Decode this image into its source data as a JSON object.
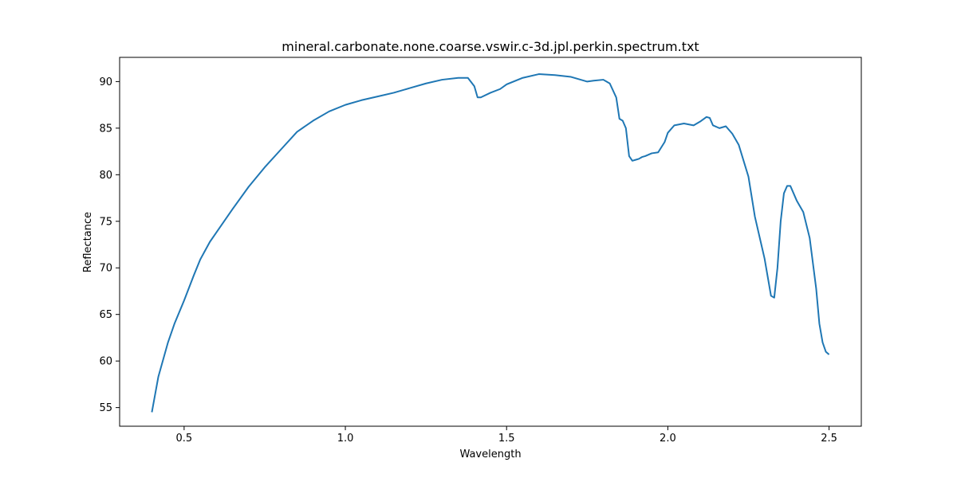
{
  "chart_data": {
    "type": "line",
    "title": "mineral.carbonate.none.coarse.vswir.c-3d.jpl.perkin.spectrum.txt",
    "xlabel": "Wavelength",
    "ylabel": "Reflectance",
    "xlim": [
      0.3,
      2.6
    ],
    "ylim": [
      53,
      92.6
    ],
    "grid": false,
    "x_ticks": [
      0.5,
      1.0,
      1.5,
      2.0,
      2.5
    ],
    "x_tick_labels": [
      "0.5",
      "1.0",
      "1.5",
      "2.0",
      "2.5"
    ],
    "y_ticks": [
      55,
      60,
      65,
      70,
      75,
      80,
      85,
      90
    ],
    "y_tick_labels": [
      "55",
      "60",
      "65",
      "70",
      "75",
      "80",
      "85",
      "90"
    ],
    "series": [
      {
        "color": "#1f77b4",
        "x": [
          0.4,
          0.42,
          0.45,
          0.47,
          0.5,
          0.53,
          0.55,
          0.58,
          0.6,
          0.65,
          0.7,
          0.75,
          0.8,
          0.85,
          0.9,
          0.95,
          1.0,
          1.05,
          1.1,
          1.15,
          1.2,
          1.25,
          1.3,
          1.35,
          1.38,
          1.4,
          1.41,
          1.42,
          1.45,
          1.48,
          1.5,
          1.55,
          1.6,
          1.65,
          1.7,
          1.75,
          1.77,
          1.8,
          1.82,
          1.84,
          1.85,
          1.86,
          1.87,
          1.88,
          1.89,
          1.9,
          1.91,
          1.92,
          1.93,
          1.95,
          1.97,
          1.99,
          2.0,
          2.02,
          2.05,
          2.08,
          2.1,
          2.12,
          2.13,
          2.14,
          2.16,
          2.18,
          2.2,
          2.22,
          2.25,
          2.27,
          2.29,
          2.3,
          2.31,
          2.32,
          2.33,
          2.34,
          2.35,
          2.36,
          2.37,
          2.38,
          2.39,
          2.4,
          2.42,
          2.44,
          2.46,
          2.47,
          2.48,
          2.49,
          2.5
        ],
        "y": [
          54.5,
          58.3,
          62.0,
          64.0,
          66.5,
          69.2,
          70.9,
          72.8,
          73.8,
          76.3,
          78.7,
          80.8,
          82.7,
          84.6,
          85.8,
          86.8,
          87.5,
          88.0,
          88.4,
          88.8,
          89.3,
          89.8,
          90.2,
          90.4,
          90.4,
          89.5,
          88.3,
          88.3,
          88.8,
          89.2,
          89.7,
          90.4,
          90.8,
          90.7,
          90.5,
          90.0,
          90.1,
          90.2,
          89.8,
          88.3,
          86.0,
          85.8,
          85.0,
          82.0,
          81.5,
          81.6,
          81.7,
          81.9,
          82.0,
          82.3,
          82.4,
          83.5,
          84.5,
          85.3,
          85.5,
          85.3,
          85.7,
          86.2,
          86.1,
          85.3,
          85.0,
          85.2,
          84.4,
          83.2,
          79.8,
          75.5,
          72.5,
          71.0,
          69.0,
          67.0,
          66.8,
          70.0,
          75.0,
          78.0,
          78.8,
          78.8,
          78.0,
          77.2,
          76.0,
          73.2,
          67.8,
          64.0,
          62.0,
          61.0,
          60.7
        ]
      }
    ]
  }
}
